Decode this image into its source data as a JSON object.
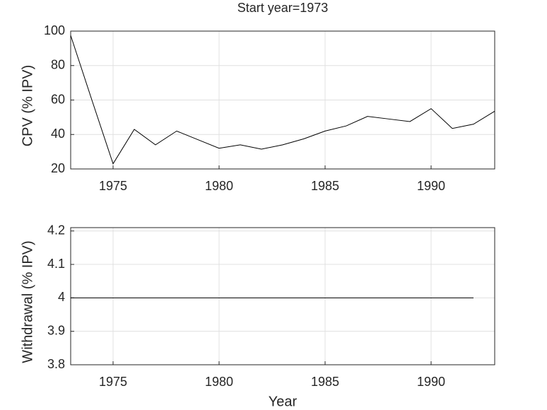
{
  "chart_data": [
    {
      "type": "line",
      "title": "Start year=1973",
      "ylabel": "CPV (% IPV)",
      "x": [
        1973,
        1974,
        1975,
        1976,
        1977,
        1978,
        1979,
        1980,
        1981,
        1982,
        1983,
        1984,
        1985,
        1986,
        1987,
        1988,
        1989,
        1990,
        1991,
        1992,
        1993
      ],
      "values": [
        97.5,
        60,
        23,
        43,
        34,
        42,
        37,
        32,
        34,
        31.5,
        34,
        37.5,
        42,
        45,
        50.5,
        49,
        47.5,
        55,
        43.5,
        46,
        53.5
      ],
      "color": "#000000",
      "xlim": [
        1973,
        1993
      ],
      "xticks": [
        1975,
        1980,
        1985,
        1990
      ],
      "ylim": [
        20,
        100
      ],
      "yticks": [
        20,
        40,
        60,
        80,
        100
      ],
      "grid": true
    },
    {
      "type": "line",
      "ylabel": "Withdrawal (% IPV)",
      "xlabel": "Year",
      "x": [
        1973,
        1974,
        1975,
        1976,
        1977,
        1978,
        1979,
        1980,
        1981,
        1982,
        1983,
        1984,
        1985,
        1986,
        1987,
        1988,
        1989,
        1990,
        1991,
        1992
      ],
      "values": [
        4,
        4,
        4,
        4,
        4,
        4,
        4,
        4,
        4,
        4,
        4,
        4,
        4,
        4,
        4,
        4,
        4,
        4,
        4,
        4
      ],
      "color": "#000000",
      "xlim": [
        1973,
        1993
      ],
      "xticks": [
        1975,
        1980,
        1985,
        1990
      ],
      "ylim": [
        3.8,
        4.21
      ],
      "yticks": [
        3.8,
        3.9,
        4,
        4.1,
        4.2
      ],
      "grid": true
    }
  ]
}
